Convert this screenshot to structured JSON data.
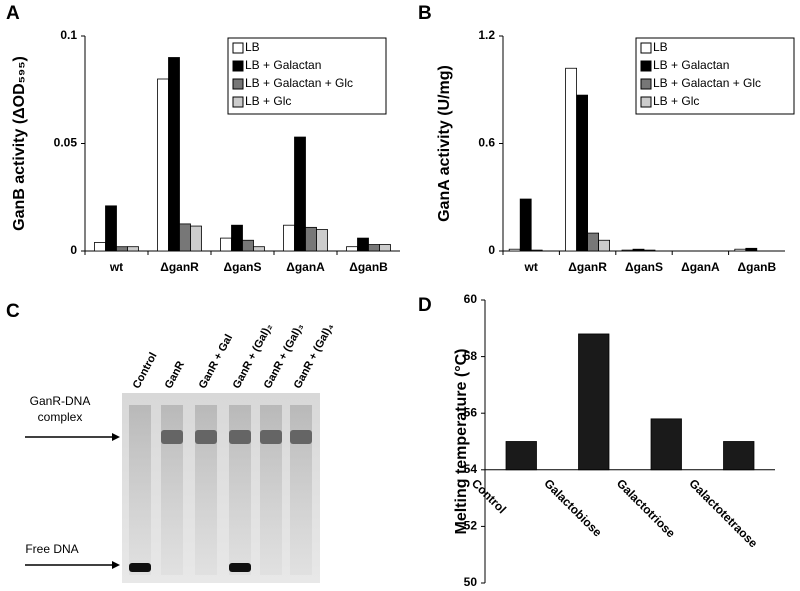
{
  "chart_data": [
    {
      "type": "bar",
      "panel_label": "A",
      "ylabel": "GanB activity (ΔOD₅₉₅)",
      "categories": [
        "wt",
        "ΔganR",
        "ΔganS",
        "ΔganA",
        "ΔganB"
      ],
      "series": [
        {
          "name": "LB",
          "color": "#ffffff",
          "values": [
            0.004,
            0.08,
            0.006,
            0.012,
            0.002
          ]
        },
        {
          "name": "LB + Galactan",
          "color": "#000000",
          "values": [
            0.021,
            0.09,
            0.012,
            0.053,
            0.006
          ]
        },
        {
          "name": "LB + Galactan + Glc",
          "color": "#777777",
          "values": [
            0.002,
            0.0126,
            0.005,
            0.011,
            0.003
          ]
        },
        {
          "name": "LB + Glc",
          "color": "#cccccc",
          "values": [
            0.002,
            0.0116,
            0.002,
            0.01,
            0.003
          ]
        }
      ],
      "ylim": [
        0,
        0.1
      ],
      "yticks": [
        0,
        0.05,
        0.1
      ],
      "legend": "upper right"
    },
    {
      "type": "bar",
      "panel_label": "B",
      "ylabel": "GanA activity (U/mg)",
      "categories": [
        "wt",
        "ΔganR",
        "ΔganS",
        "ΔganA",
        "ΔganB"
      ],
      "series": [
        {
          "name": "LB",
          "color": "#ffffff",
          "values": [
            0.01,
            1.02,
            0.005,
            0,
            0.01
          ]
        },
        {
          "name": "LB + Galactan",
          "color": "#000000",
          "values": [
            0.29,
            0.87,
            0.01,
            0,
            0.015
          ]
        },
        {
          "name": "LB + Galactan + Glc",
          "color": "#777777",
          "values": [
            0.005,
            0.1,
            0.005,
            0,
            0
          ]
        },
        {
          "name": "LB + Glc",
          "color": "#cccccc",
          "values": [
            0,
            0.06,
            0,
            0,
            0
          ]
        }
      ],
      "ylim": [
        0,
        1.2
      ],
      "yticks": [
        0,
        0.6,
        1.2
      ],
      "legend": "upper right"
    },
    {
      "type": "bar",
      "panel_label": "D",
      "ylabel": "Melting temperature (°C)",
      "categories": [
        "Control",
        "Galactobiose",
        "Galactotriose",
        "Galactotetraose"
      ],
      "series": [
        {
          "name": null,
          "color": "#1a1a1a",
          "values": [
            55,
            58.8,
            55.8,
            55
          ]
        }
      ],
      "ylim": [
        50,
        60
      ],
      "yticks": [
        50,
        52,
        54,
        56,
        58,
        60
      ],
      "xaxis_at": 54
    }
  ],
  "gel": {
    "panel_label": "C",
    "lanes": [
      "Control",
      "GanR",
      "GanR + Gal",
      "GanR + (Gal)₂",
      "GanR + (Gal)₃",
      "GanR + (Gal)₄"
    ],
    "bands": [
      "GanR-DNA\ncomplex",
      "Free DNA"
    ]
  }
}
